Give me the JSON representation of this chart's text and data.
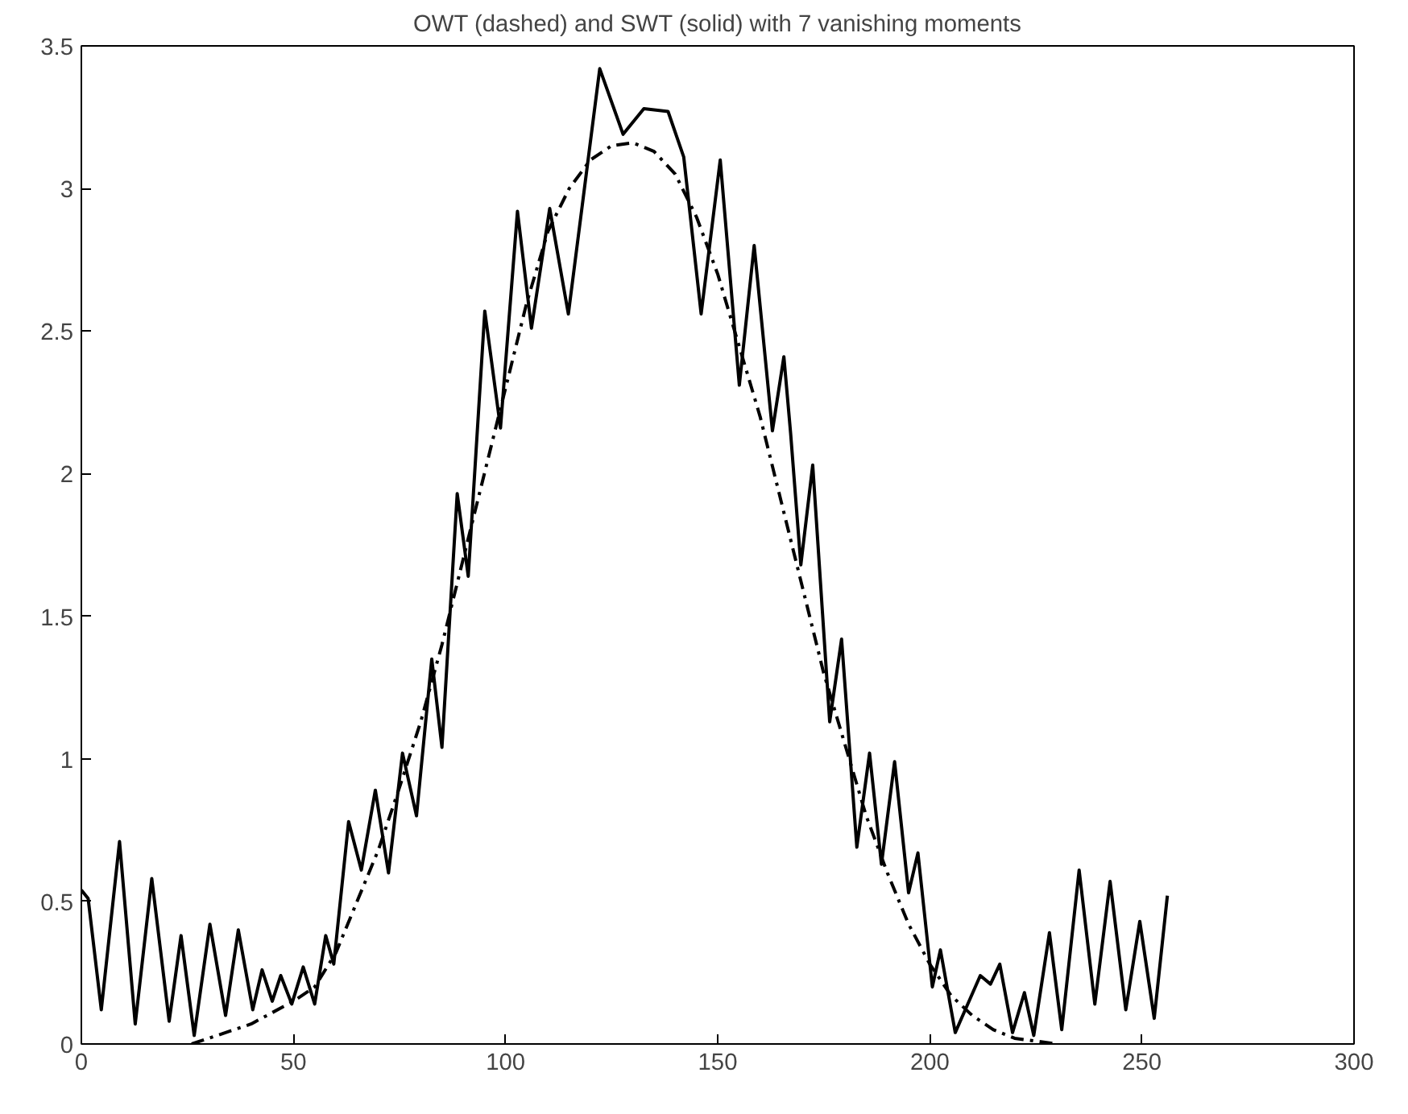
{
  "chart_data": {
    "type": "line",
    "title": "OWT (dashed) and SWT (solid) with 7 vanishing moments",
    "xlim": [
      0,
      300
    ],
    "ylim": [
      0,
      3.5
    ],
    "xticks": [
      0,
      50,
      100,
      150,
      200,
      250,
      300
    ],
    "yticks": [
      0,
      0.5,
      1,
      1.5,
      2,
      2.5,
      3,
      3.5
    ],
    "series": [
      {
        "color": "#000000",
        "line_style": "solid",
        "x": [
          0,
          1.6,
          4.7,
          9,
          12.7,
          16.6,
          20.7,
          23.5,
          26.6,
          30.3,
          34,
          37,
          40.4,
          42.6,
          45,
          47,
          49.6,
          52.3,
          55,
          57.6,
          59.5,
          63,
          66,
          69.3,
          72.4,
          75.7,
          79,
          82.6,
          85,
          88.6,
          91.2,
          95.1,
          98.8,
          102.8,
          106.1,
          110.4,
          114.8,
          122.2,
          127.7,
          132.6,
          138.3,
          142,
          146.1,
          150.6,
          155.1,
          158.6,
          162.9,
          165.6,
          167.2,
          169.6,
          172.4,
          176.4,
          179.2,
          182.8,
          185.8,
          188.6,
          191.7,
          195,
          197.2,
          200.6,
          202.5,
          206,
          211.9,
          214.3,
          216.5,
          219.5,
          222.3,
          224.5,
          228.2,
          231.1,
          235.2,
          238.9,
          242.5,
          246.2,
          249.5,
          252.9,
          256
        ],
        "values": [
          0.54,
          0.51,
          0.12,
          0.71,
          0.07,
          0.58,
          0.08,
          0.38,
          0.03,
          0.42,
          0.1,
          0.4,
          0.12,
          0.26,
          0.15,
          0.24,
          0.14,
          0.27,
          0.14,
          0.38,
          0.28,
          0.78,
          0.61,
          0.89,
          0.6,
          1.02,
          0.8,
          1.35,
          1.04,
          1.93,
          1.64,
          2.57,
          2.16,
          2.92,
          2.51,
          2.93,
          2.56,
          3.42,
          3.19,
          3.28,
          3.27,
          3.11,
          2.56,
          3.1,
          2.31,
          2.8,
          2.15,
          2.41,
          2.14,
          1.68,
          2.03,
          1.13,
          1.42,
          0.69,
          1.02,
          0.63,
          0.99,
          0.53,
          0.67,
          0.2,
          0.33,
          0.04,
          0.24,
          0.21,
          0.28,
          0.04,
          0.18,
          0.03,
          0.39,
          0.05,
          0.61,
          0.14,
          0.57,
          0.12,
          0.43,
          0.09,
          0.52
        ]
      },
      {
        "color": "#000000",
        "line_style": "dashed",
        "x": [
          26,
          30,
          40,
          50,
          55,
          60,
          65,
          70,
          75,
          80,
          85,
          90,
          95,
          100,
          105,
          110,
          115,
          120,
          125,
          130,
          135,
          140,
          145,
          150,
          155,
          160,
          165,
          170,
          175,
          180,
          185,
          190,
          195,
          200,
          205,
          210,
          215,
          220,
          230
        ],
        "values": [
          0,
          0.02,
          0.07,
          0.15,
          0.2,
          0.32,
          0.5,
          0.68,
          0.9,
          1.13,
          1.4,
          1.7,
          2.0,
          2.3,
          2.6,
          2.85,
          3.0,
          3.1,
          3.15,
          3.16,
          3.13,
          3.05,
          2.9,
          2.7,
          2.45,
          2.2,
          1.9,
          1.6,
          1.3,
          1.05,
          0.8,
          0.6,
          0.42,
          0.28,
          0.17,
          0.1,
          0.05,
          0.02,
          0
        ]
      }
    ]
  }
}
